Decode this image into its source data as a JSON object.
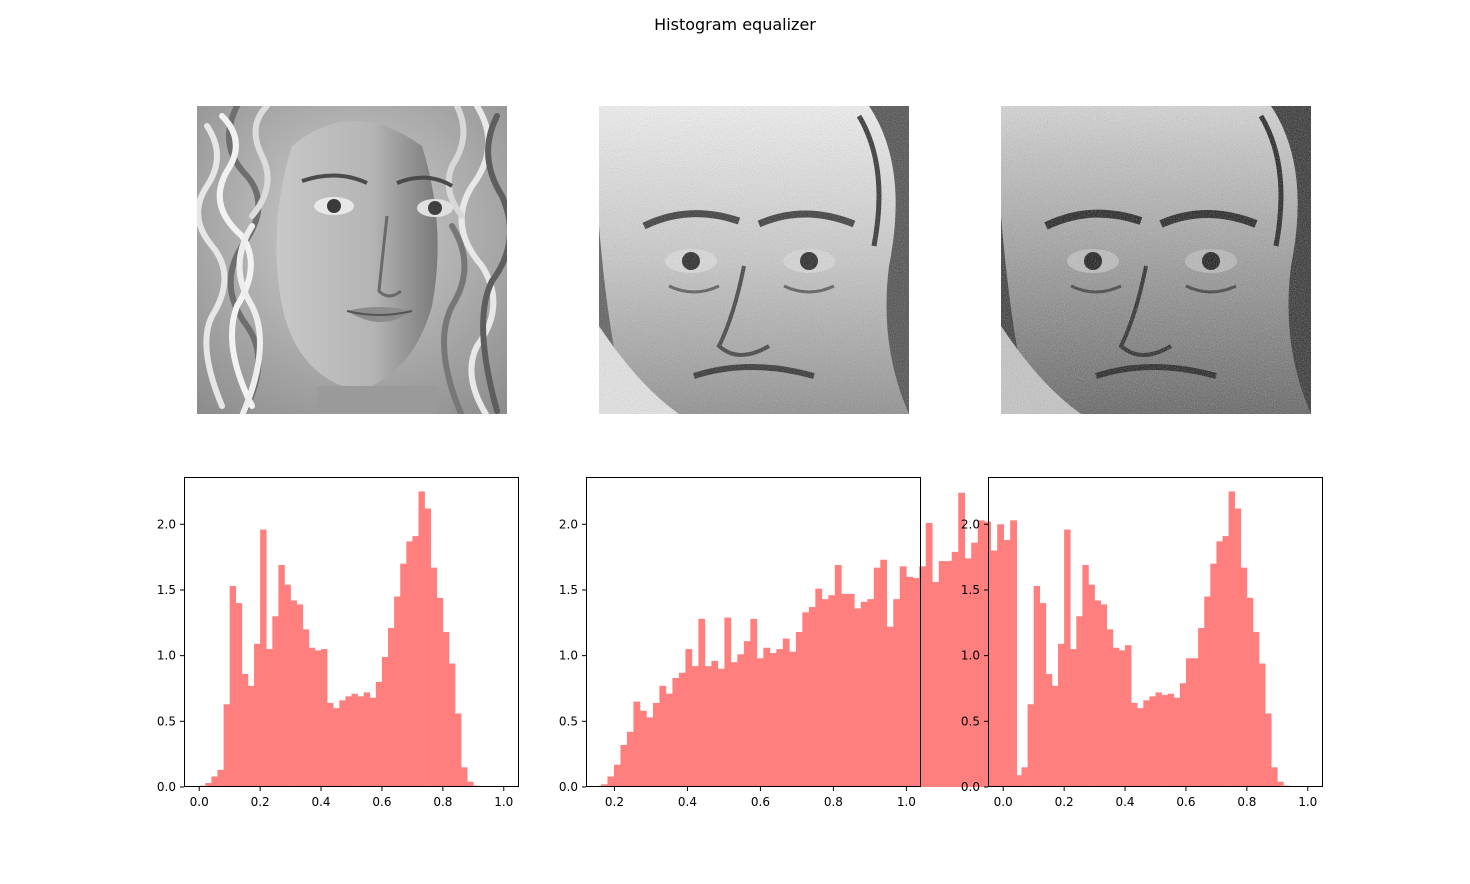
{
  "title": "Histogram equalizer",
  "bar_color": "#ff7f7f",
  "images": [
    {
      "name": "original-face-image",
      "icon": "portrait-woman-curly-hair"
    },
    {
      "name": "target-face-image",
      "icon": "portrait-old-man-engraving"
    },
    {
      "name": "equalized-face-image",
      "icon": "portrait-old-man-equalized"
    }
  ],
  "chart_data": [
    {
      "type": "bar",
      "bins_start": 0.0,
      "bin_width": 0.02,
      "values": [
        0.01,
        0.03,
        0.08,
        0.13,
        0.63,
        1.53,
        1.4,
        0.86,
        0.77,
        1.09,
        1.96,
        1.05,
        1.3,
        1.69,
        1.54,
        1.42,
        1.39,
        1.2,
        1.06,
        1.04,
        1.05,
        0.64,
        0.6,
        0.66,
        0.69,
        0.71,
        0.69,
        0.72,
        0.68,
        0.8,
        0.99,
        1.21,
        1.45,
        1.7,
        1.87,
        1.91,
        2.25,
        2.12,
        1.67,
        1.44,
        1.18,
        0.94,
        0.56,
        0.15,
        0.04,
        0.01
      ],
      "xlim": [
        -0.05,
        1.05
      ],
      "ylim": [
        0,
        2.36
      ],
      "xticks": [
        "0.0",
        "0.2",
        "0.4",
        "0.6",
        "0.8",
        "1.0"
      ],
      "xtick_values": [
        0.0,
        0.2,
        0.4,
        0.6,
        0.8,
        1.0
      ],
      "yticks": [
        "0.0",
        "0.5",
        "1.0",
        "1.5",
        "2.0"
      ],
      "ytick_values": [
        0.0,
        0.5,
        1.0,
        1.5,
        2.0
      ]
    },
    {
      "type": "bar",
      "bins_start": 0.163,
      "bin_width": 0.0178,
      "values": [
        0.02,
        0.08,
        0.17,
        0.32,
        0.42,
        0.65,
        0.58,
        0.53,
        0.64,
        0.77,
        0.71,
        0.83,
        0.87,
        1.05,
        0.92,
        1.28,
        0.92,
        0.96,
        0.9,
        1.29,
        0.95,
        1.01,
        1.11,
        1.28,
        0.98,
        1.06,
        1.02,
        1.05,
        1.13,
        1.03,
        1.18,
        1.33,
        1.37,
        1.51,
        1.43,
        1.46,
        1.69,
        1.47,
        1.47,
        1.36,
        1.41,
        1.43,
        1.67,
        1.73,
        1.22,
        1.43,
        1.68,
        1.6,
        1.59,
        1.68,
        2.01,
        1.56,
        1.72,
        1.72,
        1.79,
        2.24,
        1.74,
        1.86,
        2.03,
        2.02,
        1.8,
        2.0,
        1.88,
        2.03
      ],
      "xlim": [
        0.122,
        1.04
      ],
      "ylim": [
        0,
        2.36
      ],
      "xticks": [
        "0.2",
        "0.4",
        "0.6",
        "0.8",
        "1.0"
      ],
      "xtick_values": [
        0.2,
        0.4,
        0.6,
        0.8,
        1.0
      ],
      "yticks": [
        "0.0",
        "0.5",
        "1.0",
        "1.5",
        "2.0"
      ],
      "ytick_values": [
        0.0,
        0.5,
        1.0,
        1.5,
        2.0
      ]
    },
    {
      "type": "bar",
      "bins_start": 0.0,
      "bin_width": 0.02,
      "values": [
        0.01,
        0.03,
        0.09,
        0.15,
        0.63,
        1.53,
        1.4,
        0.86,
        0.77,
        1.09,
        1.96,
        1.05,
        1.3,
        1.69,
        1.54,
        1.42,
        1.39,
        1.2,
        1.06,
        1.04,
        1.08,
        0.64,
        0.6,
        0.66,
        0.69,
        0.72,
        0.7,
        0.71,
        0.68,
        0.79,
        0.98,
        0.98,
        1.21,
        1.45,
        1.7,
        1.87,
        1.91,
        2.25,
        2.12,
        1.67,
        1.44,
        1.18,
        0.94,
        0.56,
        0.15,
        0.04,
        0.01
      ],
      "xlim": [
        -0.05,
        1.05
      ],
      "ylim": [
        0,
        2.36
      ],
      "xticks": [
        "0.0",
        "0.2",
        "0.4",
        "0.6",
        "0.8",
        "1.0"
      ],
      "xtick_values": [
        0.0,
        0.2,
        0.4,
        0.6,
        0.8,
        1.0
      ],
      "yticks": [
        "0.0",
        "0.5",
        "1.0",
        "1.5",
        "2.0"
      ],
      "ytick_values": [
        0.0,
        0.5,
        1.0,
        1.5,
        2.0
      ]
    }
  ]
}
